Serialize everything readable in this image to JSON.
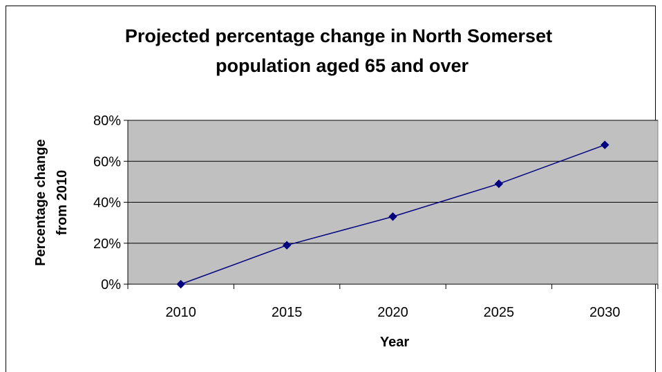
{
  "chart_data": {
    "type": "line",
    "title_lines": [
      "Projected percentage change in North Somerset",
      "population aged 65 and over"
    ],
    "xlabel": "Year",
    "ylabel_lines": [
      "Percentage change",
      "from 2010"
    ],
    "categories": [
      "2010",
      "2015",
      "2020",
      "2025",
      "2030"
    ],
    "series": [
      {
        "values": [
          0,
          19,
          33,
          49,
          68
        ]
      }
    ],
    "ylim": [
      0,
      80
    ],
    "y_ticks": [
      0,
      20,
      40,
      60,
      80
    ],
    "y_tick_labels": [
      "0%",
      "20%",
      "40%",
      "60%",
      "80%"
    ],
    "grid": true,
    "plot_background": "#C0C0C0",
    "line_color": "#000080",
    "marker": "diamond"
  }
}
